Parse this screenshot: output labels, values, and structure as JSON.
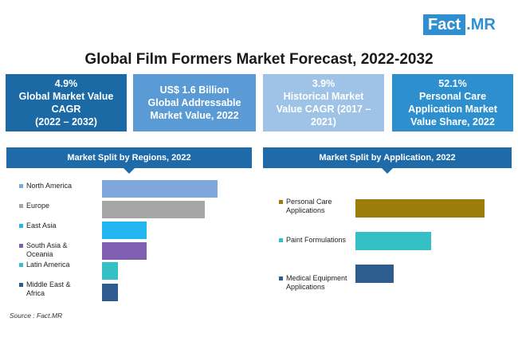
{
  "logo": {
    "part1": "Fact",
    "dot": ".",
    "part2": "MR"
  },
  "title": "Global Film Formers Market Forecast, 2022-2032",
  "stats": [
    {
      "lines": [
        "4.9%",
        "Global Market Value",
        "CAGR",
        "(2022 – 2032)"
      ],
      "color": "#1b6aa5"
    },
    {
      "lines": [
        "US$ 1.6 Billion",
        "Global Addressable",
        "Market Value, 2022"
      ],
      "color": "#5b9bd5"
    },
    {
      "lines": [
        "3.9%",
        "Historical Market",
        "Value CAGR (2017 –",
        "2021)"
      ],
      "color": "#9ec3e6"
    },
    {
      "lines": [
        "52.1%",
        "Personal Care",
        "Application Market",
        "Value Share, 2022"
      ],
      "color": "#2e8fce"
    }
  ],
  "chart_data": [
    {
      "type": "bar",
      "title": "Market Split by Regions, 2022",
      "categories": [
        "North America",
        "Europe",
        "East Asia",
        "South Asia & Oceania",
        "Latin America",
        "Middle East & Africa"
      ],
      "label_lines": [
        [
          "North America"
        ],
        [
          "Europe"
        ],
        [
          "East Asia"
        ],
        [
          "South Asia &",
          "Oceania"
        ],
        [
          "Latin America"
        ],
        [
          "Middle East &",
          "Africa"
        ]
      ],
      "values": [
        32.5,
        29,
        12.5,
        12.5,
        4.5,
        4.5
      ],
      "colors": [
        "#7ea8dc",
        "#a6a6a6",
        "#22b5f0",
        "#7e5fb0",
        "#35c0c6",
        "#2e5c8e"
      ],
      "orientation": "horizontal"
    },
    {
      "type": "bar",
      "title": "Market Split by Application, 2022",
      "categories": [
        "Personal Care Applications",
        "Paint Formulations",
        "Medical Equipment Applications"
      ],
      "label_lines": [
        [
          "Personal Care",
          "Applications"
        ],
        [
          "Paint Formulations"
        ],
        [
          "Medical Equipment",
          "Applications"
        ]
      ],
      "values": [
        52.1,
        30.5,
        15.5
      ],
      "colors": [
        "#9a7d0a",
        "#35c0c6",
        "#2e5c8e"
      ],
      "orientation": "horizontal"
    }
  ],
  "source": "Source : Fact.MR"
}
